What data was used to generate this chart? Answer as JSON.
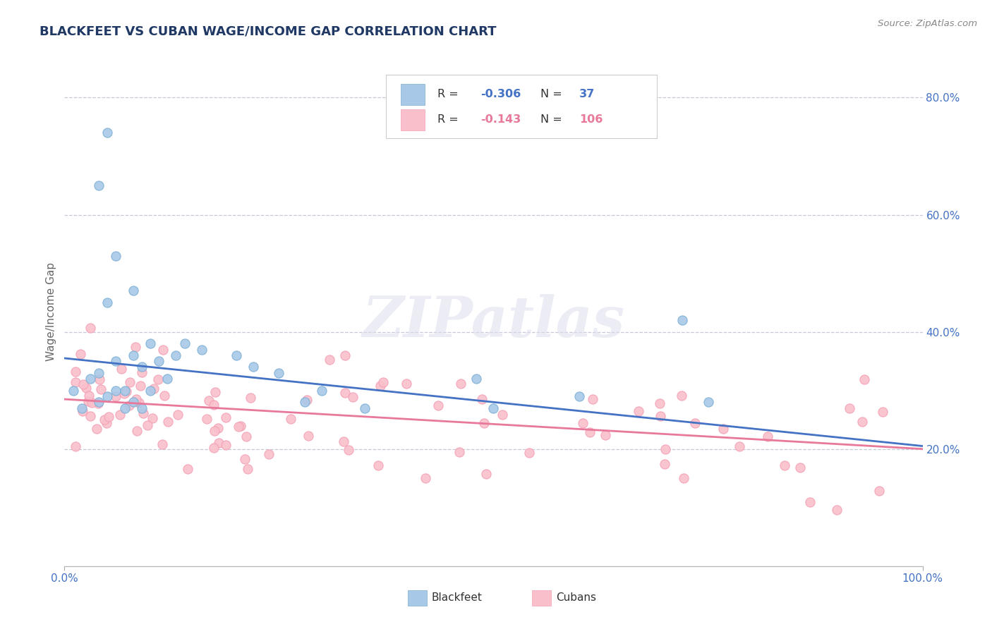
{
  "title": "BLACKFEET VS CUBAN WAGE/INCOME GAP CORRELATION CHART",
  "source_text": "Source: ZipAtlas.com",
  "ylabel": "Wage/Income Gap",
  "x_min": 0.0,
  "x_max": 1.0,
  "y_min": 0.0,
  "y_max": 0.87,
  "y_tick_values": [
    0.2,
    0.4,
    0.6,
    0.8
  ],
  "y_tick_labels": [
    "20.0%",
    "40.0%",
    "60.0%",
    "80.0%"
  ],
  "blackfeet_R": -0.306,
  "blackfeet_N": 37,
  "cuban_R": -0.143,
  "cuban_N": 106,
  "blackfeet_color": "#a8c8e8",
  "cuban_color": "#f9c0cb",
  "blackfeet_edge_color": "#7bafd4",
  "cuban_edge_color": "#f4a0b5",
  "blackfeet_line_color": "#4472c4",
  "cuban_line_color": "#e8799a",
  "legend_label_blackfeet": "Blackfeet",
  "legend_label_cubans": "Cubans",
  "title_color": "#1f3864",
  "axis_tick_color": "#4472c4",
  "watermark_text": "ZIPatlas",
  "background_color": "#ffffff",
  "grid_color": "#c8c8d8",
  "bf_line_start_y": 0.355,
  "bf_line_end_y": 0.205,
  "cu_line_start_y": 0.285,
  "cu_line_end_y": 0.2
}
